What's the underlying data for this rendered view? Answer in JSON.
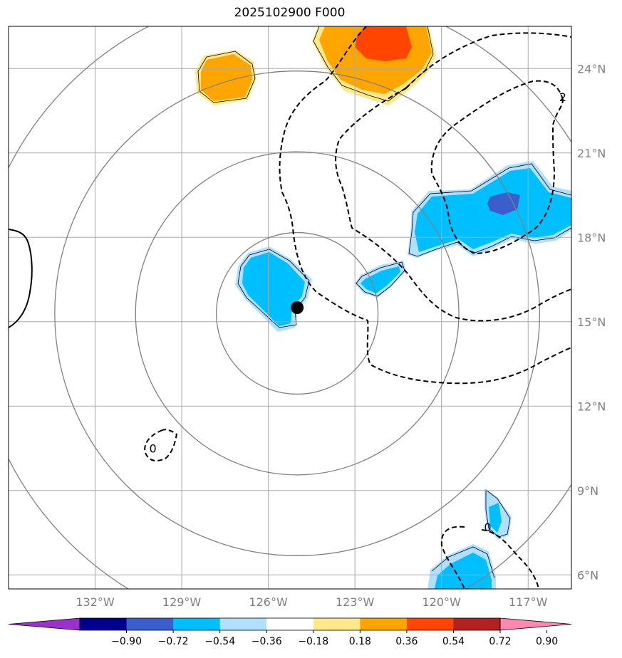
{
  "chart_data": {
    "type": "heatmap",
    "title": "2025102900 F000",
    "projection": "map, lat/lon grid",
    "x_axis": {
      "range": [
        -135,
        -115.5
      ],
      "ticks": [
        -132,
        -129,
        -126,
        -123,
        -120,
        -117
      ],
      "tick_labels": [
        "132°W",
        "129°W",
        "126°W",
        "123°W",
        "120°W",
        "117°W"
      ]
    },
    "y_axis": {
      "range": [
        5.5,
        25.5
      ],
      "ticks": [
        6,
        9,
        12,
        15,
        18,
        21,
        24
      ],
      "tick_labels": [
        "6°N",
        "9°N",
        "12°N",
        "15°N",
        "18°N",
        "21°N",
        "24°N"
      ]
    },
    "grid": true,
    "center_marker": {
      "lon": -125,
      "lat": 15.5
    },
    "range_rings_deg": [
      2.8,
      5.6,
      8.4,
      11.2
    ],
    "contour_labels": [
      {
        "text": "0",
        "lon": -130.0,
        "lat": 10.5
      },
      {
        "text": "0",
        "lon": -118.4,
        "lat": 7.7
      },
      {
        "text": "2",
        "lon": -115.8,
        "lat": 23.0
      }
    ],
    "colorbar": {
      "levels": [
        -0.9,
        -0.72,
        -0.54,
        -0.36,
        -0.18,
        0.18,
        0.36,
        0.54,
        0.72,
        0.9
      ],
      "tick_labels": [
        "−0.90",
        "−0.72",
        "−0.54",
        "−0.36",
        "−0.18",
        "0.18",
        "0.36",
        "0.54",
        "0.72",
        "0.90"
      ],
      "colors": [
        "#9932cc",
        "#00008b",
        "#3a5fcd",
        "#00bfff",
        "#b0e0ff",
        "#ffffff",
        "#ffe88a",
        "#ffa500",
        "#ff4500",
        "#b22222",
        "#ff88b0"
      ],
      "extend": "both"
    },
    "shaded_regions": [
      {
        "lon": -127.2,
        "lat": 23.6,
        "value": 0.45
      },
      {
        "lon": -122.5,
        "lat": 24.5,
        "value": 0.63
      },
      {
        "lon": -125.5,
        "lat": 16.3,
        "value": -0.45
      },
      {
        "lon": -122.0,
        "lat": 16.6,
        "value": -0.45
      },
      {
        "lon": -118.2,
        "lat": 19.0,
        "value": -0.45
      },
      {
        "lon": -117.4,
        "lat": 19.2,
        "value": -0.63
      },
      {
        "lon": -117.7,
        "lat": 8.0,
        "value": -0.45
      },
      {
        "lon": -118.7,
        "lat": 6.2,
        "value": -0.45
      }
    ]
  }
}
